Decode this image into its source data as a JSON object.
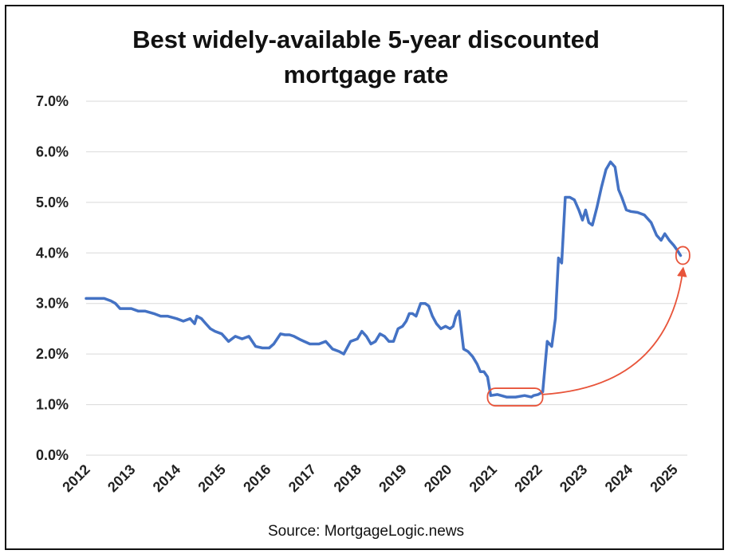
{
  "chart_data": {
    "type": "line",
    "title": "Best widely-available 5-year discounted",
    "title_line2": "mortgage rate",
    "source": "Source: MortgageLogic.news",
    "ylim": [
      0.0,
      7.0
    ],
    "yticks": [
      "0.0%",
      "1.0%",
      "2.0%",
      "3.0%",
      "4.0%",
      "5.0%",
      "6.0%",
      "7.0%"
    ],
    "xticks": [
      "2012",
      "2013",
      "2014",
      "2015",
      "2016",
      "2017",
      "2018",
      "2019",
      "2020",
      "2021",
      "2022",
      "2023",
      "2024",
      "2025"
    ],
    "xlim": [
      2012.0,
      2025.3
    ],
    "grid": true,
    "line_color": "#4472c4",
    "annotation_color": "#e8543a",
    "annotations": [
      {
        "type": "rounded-box",
        "x_from": 2020.88,
        "x_to": 2022.1,
        "y": 1.15
      },
      {
        "type": "rounded-box",
        "x_from": 2025.05,
        "x_to": 2025.35,
        "y": 3.95
      },
      {
        "type": "arrow",
        "from": [
          2022.1,
          1.2
        ],
        "to": [
          2025.2,
          3.65
        ]
      }
    ],
    "series": [
      {
        "x": [
          2012.0,
          2012.25,
          2012.4,
          2012.55,
          2012.65,
          2012.75,
          2013.0,
          2013.15,
          2013.3,
          2013.5,
          2013.65,
          2013.8,
          2014.0,
          2014.15,
          2014.3,
          2014.4,
          2014.45,
          2014.55,
          2014.65,
          2014.75,
          2014.85,
          2015.0,
          2015.15,
          2015.3,
          2015.45,
          2015.6,
          2015.75,
          2015.9,
          2016.05,
          2016.15,
          2016.3,
          2016.4,
          2016.5,
          2016.6,
          2016.75,
          2016.95,
          2017.15,
          2017.3,
          2017.45,
          2017.6,
          2017.7,
          2017.85,
          2018.0,
          2018.1,
          2018.2,
          2018.3,
          2018.4,
          2018.5,
          2018.6,
          2018.7,
          2018.8,
          2018.9,
          2019.0,
          2019.08,
          2019.15,
          2019.22,
          2019.3,
          2019.4,
          2019.5,
          2019.58,
          2019.66,
          2019.75,
          2019.85,
          2019.95,
          2020.05,
          2020.12,
          2020.18,
          2020.25,
          2020.35,
          2020.45,
          2020.55,
          2020.65,
          2020.72,
          2020.8,
          2020.88,
          2020.95,
          2021.1,
          2021.3,
          2021.5,
          2021.7,
          2021.85,
          2021.9,
          2022.0,
          2022.1,
          2022.2,
          2022.3,
          2022.38,
          2022.45,
          2022.52,
          2022.6,
          2022.7,
          2022.8,
          2022.9,
          2022.98,
          2023.05,
          2023.12,
          2023.2,
          2023.3,
          2023.4,
          2023.5,
          2023.6,
          2023.7,
          2023.78,
          2023.85,
          2023.95,
          2024.05,
          2024.2,
          2024.35,
          2024.5,
          2024.62,
          2024.72,
          2024.8,
          2024.9,
          2025.0,
          2025.08,
          2025.15
        ],
        "y": [
          3.1,
          3.1,
          3.1,
          3.05,
          3.0,
          2.9,
          2.9,
          2.85,
          2.85,
          2.8,
          2.75,
          2.75,
          2.7,
          2.65,
          2.7,
          2.6,
          2.75,
          2.7,
          2.6,
          2.5,
          2.45,
          2.4,
          2.25,
          2.35,
          2.3,
          2.35,
          2.15,
          2.12,
          2.12,
          2.2,
          2.4,
          2.38,
          2.38,
          2.35,
          2.28,
          2.2,
          2.2,
          2.25,
          2.1,
          2.05,
          2.0,
          2.25,
          2.3,
          2.45,
          2.35,
          2.2,
          2.25,
          2.4,
          2.35,
          2.25,
          2.25,
          2.5,
          2.55,
          2.65,
          2.8,
          2.8,
          2.75,
          3.0,
          3.0,
          2.95,
          2.75,
          2.6,
          2.5,
          2.55,
          2.5,
          2.55,
          2.75,
          2.85,
          2.1,
          2.05,
          1.95,
          1.8,
          1.65,
          1.65,
          1.55,
          1.18,
          1.2,
          1.15,
          1.15,
          1.18,
          1.15,
          1.18,
          1.2,
          1.25,
          2.25,
          2.15,
          2.7,
          3.9,
          3.8,
          5.1,
          5.1,
          5.05,
          4.85,
          4.65,
          4.85,
          4.6,
          4.55,
          4.9,
          5.3,
          5.65,
          5.8,
          5.7,
          5.25,
          5.1,
          4.85,
          4.82,
          4.8,
          4.75,
          4.6,
          4.35,
          4.25,
          4.38,
          4.25,
          4.15,
          4.05,
          3.95
        ]
      }
    ]
  }
}
